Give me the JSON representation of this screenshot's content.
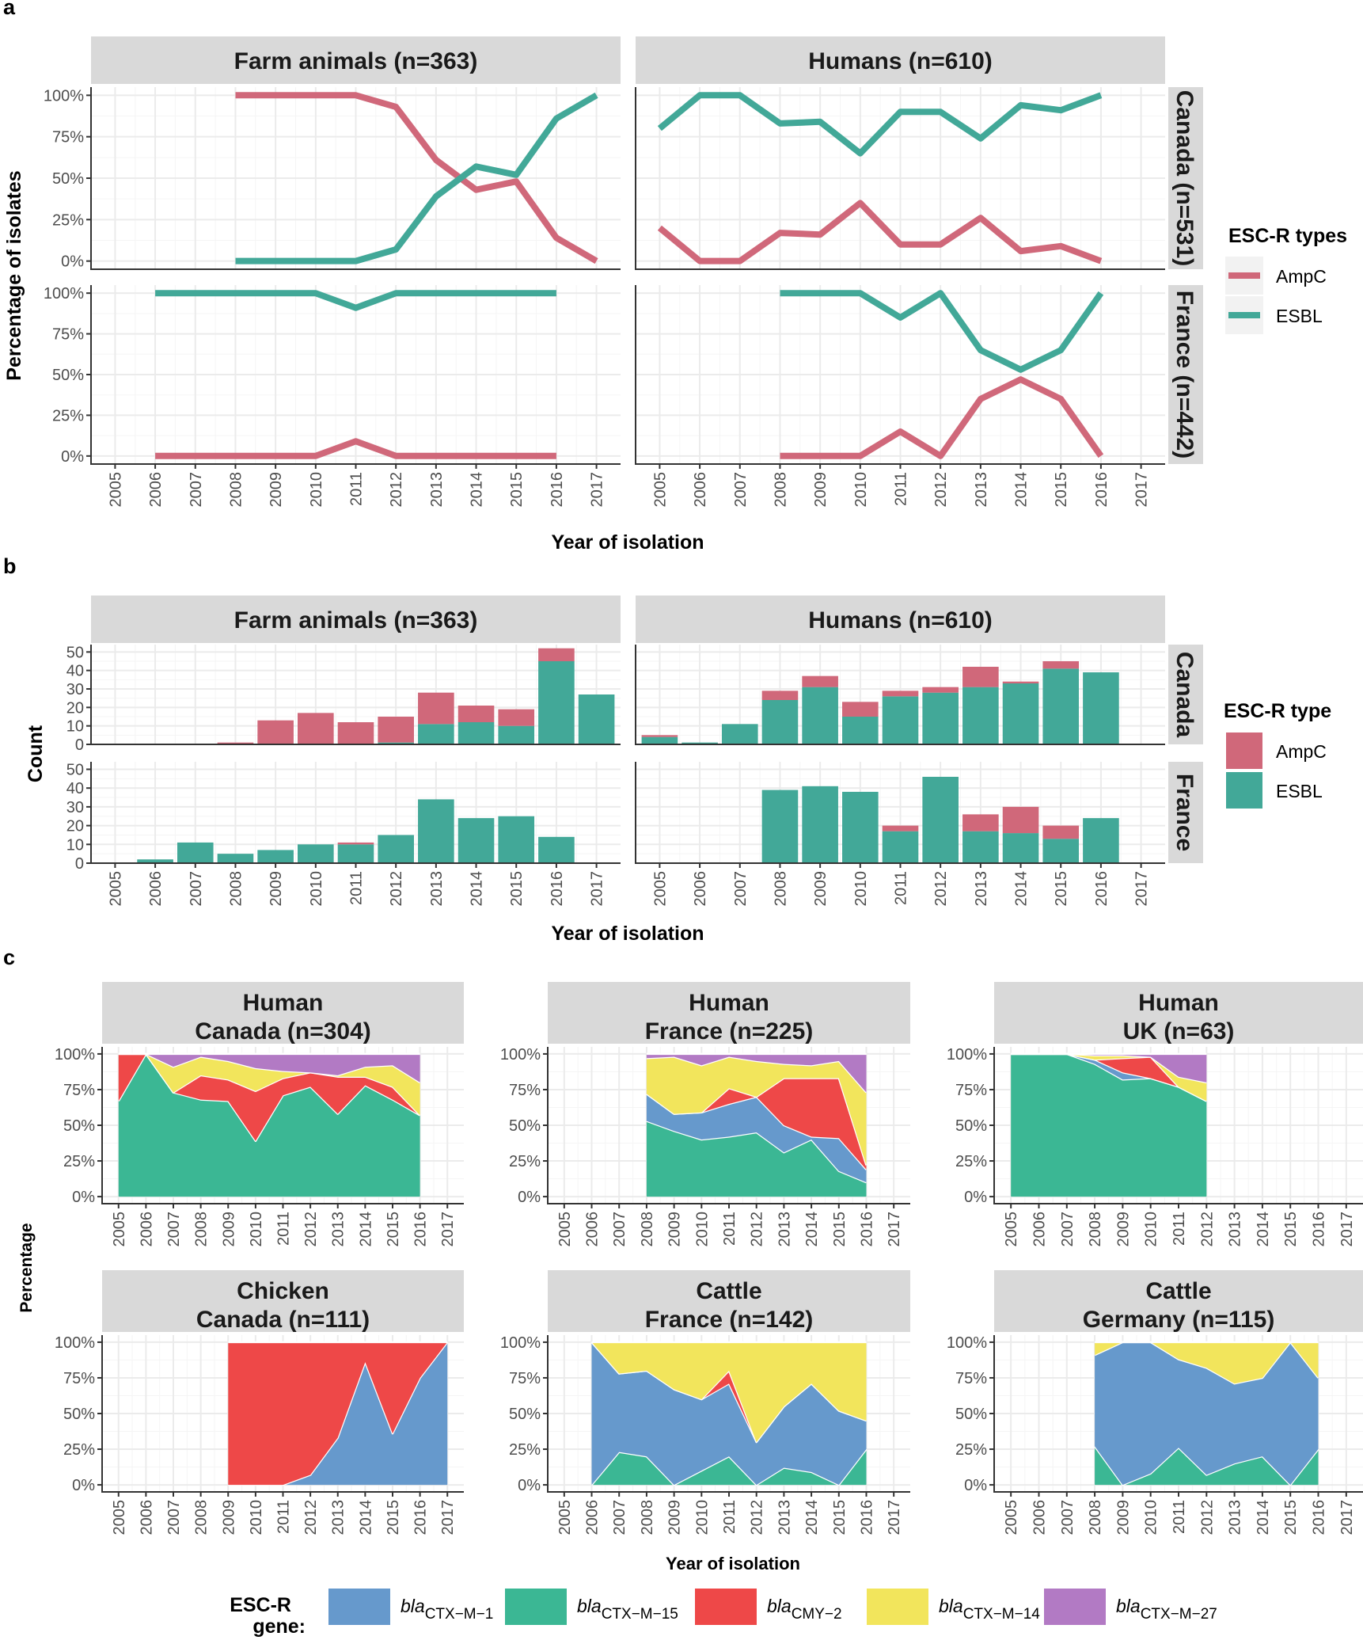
{
  "panel_labels": {
    "a": "a",
    "b": "b",
    "c": "c"
  },
  "colors": {
    "AmpC": "#d0687a",
    "ESBL": "#42a898",
    "CTX-M-1": "#6699cc",
    "CTX-M-15": "#3bb794",
    "CMY-2": "#ee4848",
    "CTX-M-14": "#f2e55c",
    "CTX-M-27": "#b27ac4"
  },
  "chart_data": [
    {
      "id": "a",
      "type": "line",
      "xlabel": "Year of isolation",
      "ylabel": "Percentage of isolates",
      "col_strips": [
        "Farm animals (n=363)",
        "Humans (n=610)"
      ],
      "row_strips": [
        "Canada (n=531)",
        "France (n=442)"
      ],
      "x_ticks": [
        "2005",
        "2006",
        "2007",
        "2008",
        "2009",
        "2010",
        "2011",
        "2012",
        "2013",
        "2014",
        "2015",
        "2016",
        "2017"
      ],
      "y_ticks": [
        "0%",
        "25%",
        "50%",
        "75%",
        "100%"
      ],
      "ylim": [
        0,
        100
      ],
      "legend": {
        "title": "ESC-R types",
        "items": [
          "AmpC",
          "ESBL"
        ]
      },
      "panels": [
        {
          "row": 0,
          "col": 0,
          "series": [
            {
              "name": "AmpC",
              "x": [
                2008,
                2009,
                2010,
                2011,
                2012,
                2013,
                2014,
                2015,
                2016,
                2017
              ],
              "y": [
                100,
                100,
                100,
                100,
                93,
                61,
                43,
                48,
                14,
                0
              ]
            },
            {
              "name": "ESBL",
              "x": [
                2008,
                2009,
                2010,
                2011,
                2012,
                2013,
                2014,
                2015,
                2016,
                2017
              ],
              "y": [
                0,
                0,
                0,
                0,
                7,
                39,
                57,
                52,
                86,
                100
              ]
            }
          ]
        },
        {
          "row": 0,
          "col": 1,
          "series": [
            {
              "name": "AmpC",
              "x": [
                2005,
                2006,
                2007,
                2008,
                2009,
                2010,
                2011,
                2012,
                2013,
                2014,
                2015,
                2016
              ],
              "y": [
                20,
                0,
                0,
                17,
                16,
                35,
                10,
                10,
                26,
                6,
                9,
                0
              ]
            },
            {
              "name": "ESBL",
              "x": [
                2005,
                2006,
                2007,
                2008,
                2009,
                2010,
                2011,
                2012,
                2013,
                2014,
                2015,
                2016
              ],
              "y": [
                80,
                100,
                100,
                83,
                84,
                65,
                90,
                90,
                74,
                94,
                91,
                100
              ]
            }
          ]
        },
        {
          "row": 1,
          "col": 0,
          "series": [
            {
              "name": "AmpC",
              "x": [
                2006,
                2007,
                2008,
                2009,
                2010,
                2011,
                2012,
                2013,
                2014,
                2015,
                2016
              ],
              "y": [
                0,
                0,
                0,
                0,
                0,
                9,
                0,
                0,
                0,
                0,
                0
              ]
            },
            {
              "name": "ESBL",
              "x": [
                2006,
                2007,
                2008,
                2009,
                2010,
                2011,
                2012,
                2013,
                2014,
                2015,
                2016
              ],
              "y": [
                100,
                100,
                100,
                100,
                100,
                91,
                100,
                100,
                100,
                100,
                100
              ]
            }
          ]
        },
        {
          "row": 1,
          "col": 1,
          "series": [
            {
              "name": "AmpC",
              "x": [
                2008,
                2009,
                2010,
                2011,
                2012,
                2013,
                2014,
                2015,
                2016
              ],
              "y": [
                0,
                0,
                0,
                15,
                0,
                35,
                47,
                35,
                0
              ]
            },
            {
              "name": "ESBL",
              "x": [
                2008,
                2009,
                2010,
                2011,
                2012,
                2013,
                2014,
                2015,
                2016
              ],
              "y": [
                100,
                100,
                100,
                85,
                100,
                65,
                53,
                65,
                100
              ]
            }
          ]
        }
      ]
    },
    {
      "id": "b",
      "type": "bar",
      "stacked": true,
      "xlabel": "Year of isolation",
      "ylabel": "Count",
      "col_strips": [
        "Farm animals (n=363)",
        "Humans (n=610)"
      ],
      "row_strips": [
        "Canada",
        "France"
      ],
      "x_ticks": [
        "2005",
        "2006",
        "2007",
        "2008",
        "2009",
        "2010",
        "2011",
        "2012",
        "2013",
        "2014",
        "2015",
        "2016",
        "2017"
      ],
      "y_ticks": [
        "0",
        "10",
        "20",
        "30",
        "40",
        "50"
      ],
      "ylim": [
        0,
        54
      ],
      "legend": {
        "title": "ESC-R type",
        "items": [
          "AmpC",
          "ESBL"
        ]
      },
      "panels": [
        {
          "row": 0,
          "col": 0,
          "ESBL": [
            0,
            0,
            0,
            0,
            0,
            0,
            0,
            1,
            11,
            12,
            10,
            45,
            27
          ],
          "AmpC": [
            0,
            0,
            0,
            1,
            13,
            17,
            12,
            14,
            17,
            9,
            9,
            7,
            0
          ]
        },
        {
          "row": 0,
          "col": 1,
          "ESBL": [
            4,
            1,
            11,
            24,
            31,
            15,
            26,
            28,
            31,
            33,
            41,
            39,
            0
          ],
          "AmpC": [
            1,
            0,
            0,
            5,
            6,
            8,
            3,
            3,
            11,
            1,
            4,
            0,
            0
          ]
        },
        {
          "row": 1,
          "col": 0,
          "ESBL": [
            0,
            2,
            11,
            5,
            7,
            10,
            10,
            15,
            34,
            24,
            25,
            14,
            0
          ],
          "AmpC": [
            0,
            0,
            0,
            0,
            0,
            0,
            1,
            0,
            0,
            0,
            0,
            0,
            0
          ]
        },
        {
          "row": 1,
          "col": 1,
          "ESBL": [
            0,
            0,
            0,
            39,
            41,
            38,
            17,
            46,
            17,
            16,
            13,
            24,
            0
          ],
          "AmpC": [
            0,
            0,
            0,
            0,
            0,
            0,
            3,
            0,
            9,
            14,
            7,
            0,
            0
          ]
        }
      ]
    },
    {
      "id": "c",
      "type": "area",
      "stacked": true,
      "xlabel": "Year of isolation",
      "ylabel": "Percentage",
      "x_ticks": [
        "2005",
        "2006",
        "2007",
        "2008",
        "2009",
        "2010",
        "2011",
        "2012",
        "2013",
        "2014",
        "2015",
        "2016",
        "2017"
      ],
      "y_ticks": [
        "0%",
        "25%",
        "50%",
        "75%",
        "100%"
      ],
      "ylim": [
        0,
        100
      ],
      "stack_order": [
        "CTX-M-15",
        "CTX-M-1",
        "CMY-2",
        "CTX-M-14",
        "CTX-M-27"
      ],
      "legend": {
        "title_line1": "ESC-R",
        "title_line2": "gene:",
        "items": [
          {
            "key": "CTX-M-1",
            "prefix": "bla",
            "sub": "CTX−M−1"
          },
          {
            "key": "CTX-M-15",
            "prefix": "bla",
            "sub": "CTX−M−15"
          },
          {
            "key": "CMY-2",
            "prefix": "bla",
            "sub": "CMY−2"
          },
          {
            "key": "CTX-M-14",
            "prefix": "bla",
            "sub": "CTX−M−14"
          },
          {
            "key": "CTX-M-27",
            "prefix": "bla",
            "sub": "CTX−M−27"
          }
        ]
      },
      "panels": [
        {
          "row": 0,
          "col": 0,
          "strip": [
            "Human",
            "Canada (n=304)"
          ],
          "x": [
            2005,
            2006,
            2007,
            2008,
            2009,
            2010,
            2011,
            2012,
            2013,
            2014,
            2015,
            2016
          ],
          "series": {
            "CTX-M-15": [
              67,
              100,
              73,
              68,
              67,
              39,
              71,
              77,
              58,
              78,
              68,
              57
            ],
            "CTX-M-1": [
              0,
              0,
              0,
              0,
              0,
              0,
              0,
              0,
              0,
              0,
              0,
              0
            ],
            "CMY-2": [
              33,
              0,
              0,
              17,
              15,
              35,
              12,
              10,
              26,
              6,
              9,
              0
            ],
            "CTX-M-14": [
              0,
              0,
              18,
              13,
              13,
              16,
              5,
              0,
              1,
              7,
              15,
              23
            ],
            "CTX-M-27": [
              0,
              0,
              9,
              2,
              5,
              10,
              12,
              13,
              15,
              9,
              8,
              20
            ]
          }
        },
        {
          "row": 0,
          "col": 1,
          "strip": [
            "Human",
            "France (n=225)"
          ],
          "x": [
            2008,
            2009,
            2010,
            2011,
            2012,
            2013,
            2014,
            2015,
            2016
          ],
          "series": {
            "CTX-M-15": [
              53,
              46,
              40,
              42,
              45,
              31,
              40,
              18,
              10
            ],
            "CTX-M-1": [
              19,
              12,
              19,
              23,
              25,
              19,
              2,
              23,
              9
            ],
            "CMY-2": [
              0,
              0,
              0,
              11,
              0,
              33,
              41,
              42,
              3
            ],
            "CTX-M-14": [
              25,
              40,
              33,
              22,
              25,
              10,
              9,
              12,
              51
            ],
            "CTX-M-27": [
              3,
              2,
              8,
              2,
              5,
              7,
              8,
              5,
              27
            ]
          }
        },
        {
          "row": 0,
          "col": 2,
          "strip": [
            "Human",
            "UK (n=63)"
          ],
          "x": [
            2005,
            2006,
            2007,
            2008,
            2009,
            2010,
            2011,
            2012
          ],
          "series": {
            "CTX-M-15": [
              100,
              100,
              100,
              93,
              82,
              83,
              77,
              67
            ],
            "CTX-M-1": [
              0,
              0,
              0,
              3,
              5,
              0,
              0,
              0
            ],
            "CMY-2": [
              0,
              0,
              0,
              0,
              10,
              15,
              0,
              0
            ],
            "CTX-M-14": [
              0,
              0,
              0,
              3,
              2,
              0,
              7,
              13
            ],
            "CTX-M-27": [
              0,
              0,
              0,
              1,
              1,
              2,
              16,
              20
            ]
          }
        },
        {
          "row": 1,
          "col": 0,
          "strip": [
            "Chicken",
            "Canada (n=111)"
          ],
          "x": [
            2009,
            2010,
            2011,
            2012,
            2013,
            2014,
            2015,
            2016,
            2017
          ],
          "series": {
            "CTX-M-15": [
              0,
              0,
              0,
              0,
              0,
              0,
              0,
              0,
              0
            ],
            "CTX-M-1": [
              0,
              0,
              0,
              7,
              33,
              86,
              36,
              75,
              100
            ],
            "CMY-2": [
              100,
              100,
              100,
              93,
              67,
              14,
              64,
              25,
              0
            ],
            "CTX-M-14": [
              0,
              0,
              0,
              0,
              0,
              0,
              0,
              0,
              0
            ],
            "CTX-M-27": [
              0,
              0,
              0,
              0,
              0,
              0,
              0,
              0,
              0
            ]
          }
        },
        {
          "row": 1,
          "col": 1,
          "strip": [
            "Cattle",
            "France (n=142)"
          ],
          "x": [
            2006,
            2007,
            2008,
            2009,
            2010,
            2011,
            2012,
            2013,
            2014,
            2015,
            2016
          ],
          "series": {
            "CTX-M-15": [
              0,
              23,
              20,
              0,
              10,
              20,
              0,
              12,
              9,
              0,
              25
            ],
            "CTX-M-1": [
              100,
              55,
              60,
              67,
              50,
              51,
              30,
              43,
              62,
              52,
              20
            ],
            "CMY-2": [
              0,
              0,
              0,
              0,
              0,
              9,
              0,
              0,
              0,
              0,
              0
            ],
            "CTX-M-14": [
              0,
              22,
              20,
              33,
              40,
              20,
              70,
              45,
              29,
              48,
              55
            ],
            "CTX-M-27": [
              0,
              0,
              0,
              0,
              0,
              0,
              0,
              0,
              0,
              0,
              0
            ]
          }
        },
        {
          "row": 1,
          "col": 2,
          "strip": [
            "Cattle",
            "Germany (n=115)"
          ],
          "x": [
            2008,
            2009,
            2010,
            2011,
            2012,
            2013,
            2014,
            2015,
            2016
          ],
          "series": {
            "CTX-M-15": [
              27,
              0,
              8,
              26,
              7,
              15,
              20,
              0,
              25
            ],
            "CTX-M-1": [
              64,
              100,
              92,
              62,
              75,
              56,
              55,
              100,
              50
            ],
            "CMY-2": [
              0,
              0,
              0,
              0,
              0,
              0,
              0,
              0,
              0
            ],
            "CTX-M-14": [
              9,
              0,
              0,
              12,
              18,
              29,
              25,
              0,
              25
            ],
            "CTX-M-27": [
              0,
              0,
              0,
              0,
              0,
              0,
              0,
              0,
              0
            ]
          }
        }
      ]
    }
  ]
}
